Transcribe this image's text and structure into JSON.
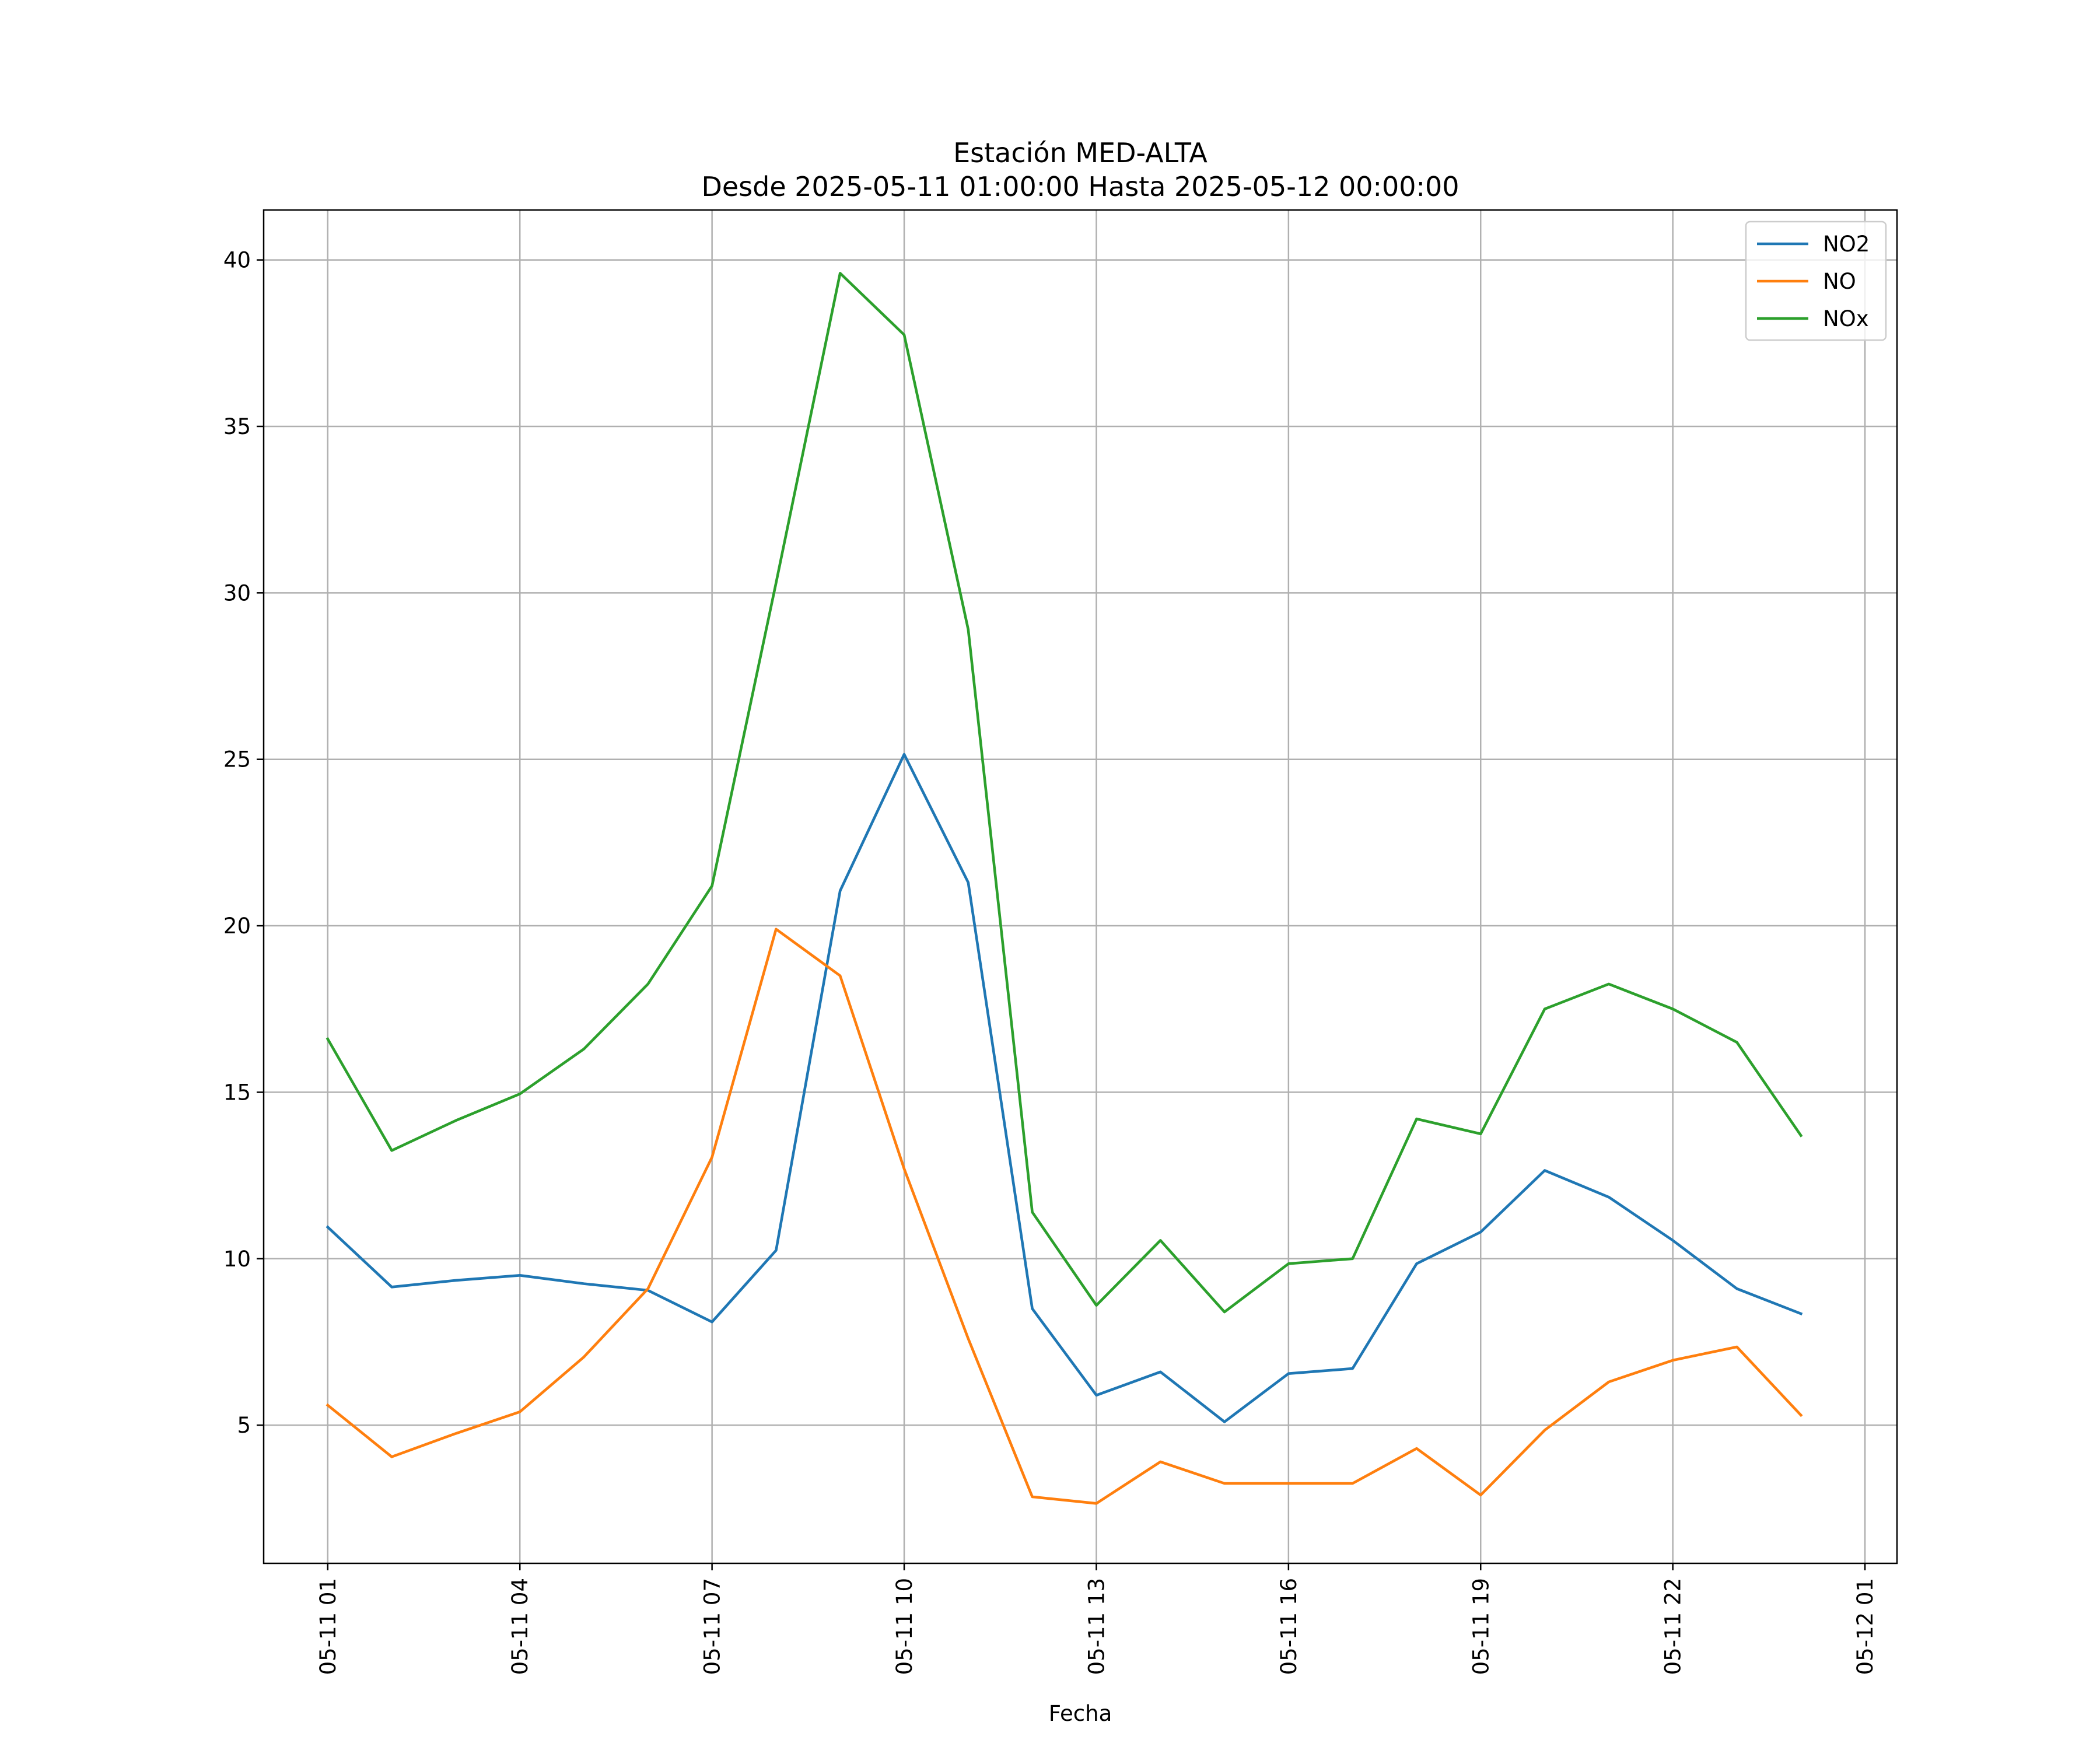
{
  "chart_data": {
    "type": "line",
    "title": "Estación MED-ALTA",
    "subtitle": "Desde 2025-05-11 01:00:00 Hasta 2025-05-12 00:00:00",
    "xlabel": "Fecha",
    "ylabel": "",
    "grid": true,
    "legend_position": "top-right",
    "ylim": [
      0.85,
      41.5
    ],
    "yticks": [
      5,
      10,
      15,
      20,
      25,
      30,
      35,
      40
    ],
    "xlim": [
      "2025-05-11 00:00",
      "2025-05-12 01:30"
    ],
    "xticks": [
      {
        "value": "2025-05-11 01:00",
        "label": "05-11 01"
      },
      {
        "value": "2025-05-11 04:00",
        "label": "05-11 04"
      },
      {
        "value": "2025-05-11 07:00",
        "label": "05-11 07"
      },
      {
        "value": "2025-05-11 10:00",
        "label": "05-11 10"
      },
      {
        "value": "2025-05-11 13:00",
        "label": "05-11 13"
      },
      {
        "value": "2025-05-11 16:00",
        "label": "05-11 16"
      },
      {
        "value": "2025-05-11 19:00",
        "label": "05-11 19"
      },
      {
        "value": "2025-05-11 22:00",
        "label": "05-11 22"
      },
      {
        "value": "2025-05-12 01:00",
        "label": "05-12 01"
      }
    ],
    "x": [
      "2025-05-11 01:00",
      "2025-05-11 02:00",
      "2025-05-11 03:00",
      "2025-05-11 04:00",
      "2025-05-11 05:00",
      "2025-05-11 06:00",
      "2025-05-11 07:00",
      "2025-05-11 08:00",
      "2025-05-11 09:00",
      "2025-05-11 10:00",
      "2025-05-11 11:00",
      "2025-05-11 12:00",
      "2025-05-11 13:00",
      "2025-05-11 14:00",
      "2025-05-11 15:00",
      "2025-05-11 16:00",
      "2025-05-11 17:00",
      "2025-05-11 18:00",
      "2025-05-11 19:00",
      "2025-05-11 20:00",
      "2025-05-11 21:00",
      "2025-05-11 22:00",
      "2025-05-11 23:00",
      "2025-05-12 00:00"
    ],
    "series": [
      {
        "name": "NO2",
        "color": "#1f77b4",
        "values": [
          10.95,
          9.15,
          9.35,
          9.5,
          9.25,
          9.05,
          8.1,
          10.25,
          21.05,
          25.15,
          21.3,
          8.5,
          5.9,
          6.6,
          5.1,
          6.55,
          6.7,
          9.85,
          10.8,
          12.65,
          11.85,
          10.55,
          9.1,
          8.35
        ]
      },
      {
        "name": "NO",
        "color": "#ff7f0e",
        "values": [
          5.6,
          4.05,
          4.75,
          5.4,
          7.05,
          9.1,
          13.05,
          19.9,
          18.5,
          12.7,
          7.6,
          2.85,
          2.65,
          3.9,
          3.25,
          3.25,
          3.25,
          4.3,
          2.9,
          4.85,
          6.3,
          6.95,
          7.35,
          5.3
        ]
      },
      {
        "name": "NOx",
        "color": "#2ca02c",
        "values": [
          16.6,
          13.25,
          14.15,
          14.95,
          16.3,
          18.25,
          21.2,
          30.3,
          39.6,
          37.75,
          28.9,
          11.4,
          8.6,
          10.55,
          8.4,
          9.85,
          10.0,
          14.2,
          13.75,
          17.5,
          18.25,
          17.5,
          16.5,
          13.7
        ]
      }
    ]
  }
}
